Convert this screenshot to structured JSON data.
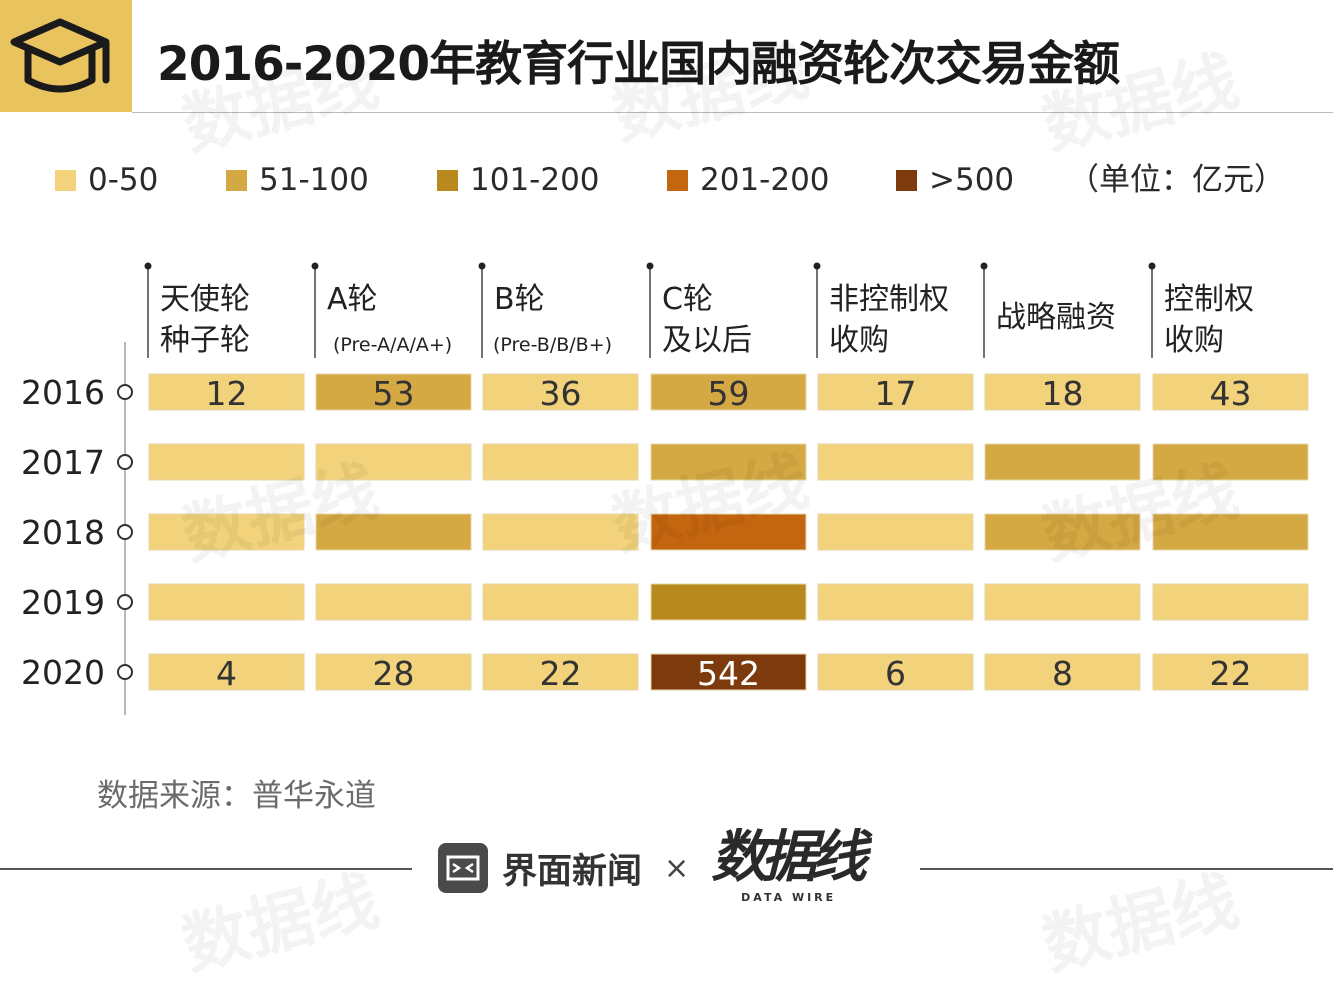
{
  "title": "2016-2020年教育行业国内融资轮次交易金额",
  "icon": "graduation-cap-icon",
  "unit_note": "（单位：亿元）",
  "source": "数据来源：普华永道",
  "footer": {
    "brand_jiemian": "界面新闻",
    "times": "×",
    "brand_datawire": "数据线",
    "brand_datawire_sub": "DATA WIRE"
  },
  "watermark_text": "数据线",
  "colors": {
    "accent": "#e8c35e",
    "bin_0_50": "#f2d27a",
    "bin_51_100": "#d4a843",
    "bin_101_200": "#b88a1e",
    "bin_201_500": "#c4650f",
    "bin_over_500": "#7d3a0c"
  },
  "legend": [
    {
      "label": "0-50",
      "color": "#f2d27a"
    },
    {
      "label": "51-100",
      "color": "#d4a843"
    },
    {
      "label": "101-200",
      "color": "#b88a1e"
    },
    {
      "label": "201-200",
      "color": "#c4650f"
    },
    {
      "label": ">500",
      "color": "#7d3a0c"
    }
  ],
  "chart_data": {
    "type": "heatmap",
    "columns": [
      {
        "line1": "天使轮",
        "line2": "种子轮",
        "sub": ""
      },
      {
        "line1": "A轮",
        "line2": "",
        "sub": "(Pre-A/A/A+)"
      },
      {
        "line1": "B轮",
        "line2": "",
        "sub": "(Pre-B/B/B+)"
      },
      {
        "line1": "C轮",
        "line2": "及以后",
        "sub": ""
      },
      {
        "line1": "非控制权",
        "line2": "收购",
        "sub": ""
      },
      {
        "line1": "战略融资",
        "line2": "",
        "sub": ""
      },
      {
        "line1": "控制权",
        "line2": "收购",
        "sub": ""
      }
    ],
    "rows": [
      "2016",
      "2017",
      "2018",
      "2019",
      "2020"
    ],
    "values": [
      [
        12,
        53,
        36,
        59,
        17,
        18,
        43
      ],
      [
        null,
        null,
        null,
        null,
        null,
        null,
        null
      ],
      [
        null,
        null,
        null,
        null,
        null,
        null,
        null
      ],
      [
        null,
        null,
        null,
        null,
        null,
        null,
        null
      ],
      [
        4,
        28,
        22,
        542,
        6,
        8,
        22
      ]
    ],
    "bins": [
      [
        "0-50",
        "51-100",
        "0-50",
        "51-100",
        "0-50",
        "0-50",
        "0-50"
      ],
      [
        "0-50",
        "0-50",
        "0-50",
        "51-100",
        "0-50",
        "51-100",
        "51-100"
      ],
      [
        "0-50",
        "51-100",
        "0-50",
        "201-200",
        "0-50",
        "51-100",
        "51-100"
      ],
      [
        "0-50",
        "0-50",
        "0-50",
        "101-200",
        "0-50",
        "0-50",
        "0-50"
      ],
      [
        "0-50",
        "0-50",
        "0-50",
        ">500",
        "0-50",
        "0-50",
        "0-50"
      ]
    ]
  }
}
